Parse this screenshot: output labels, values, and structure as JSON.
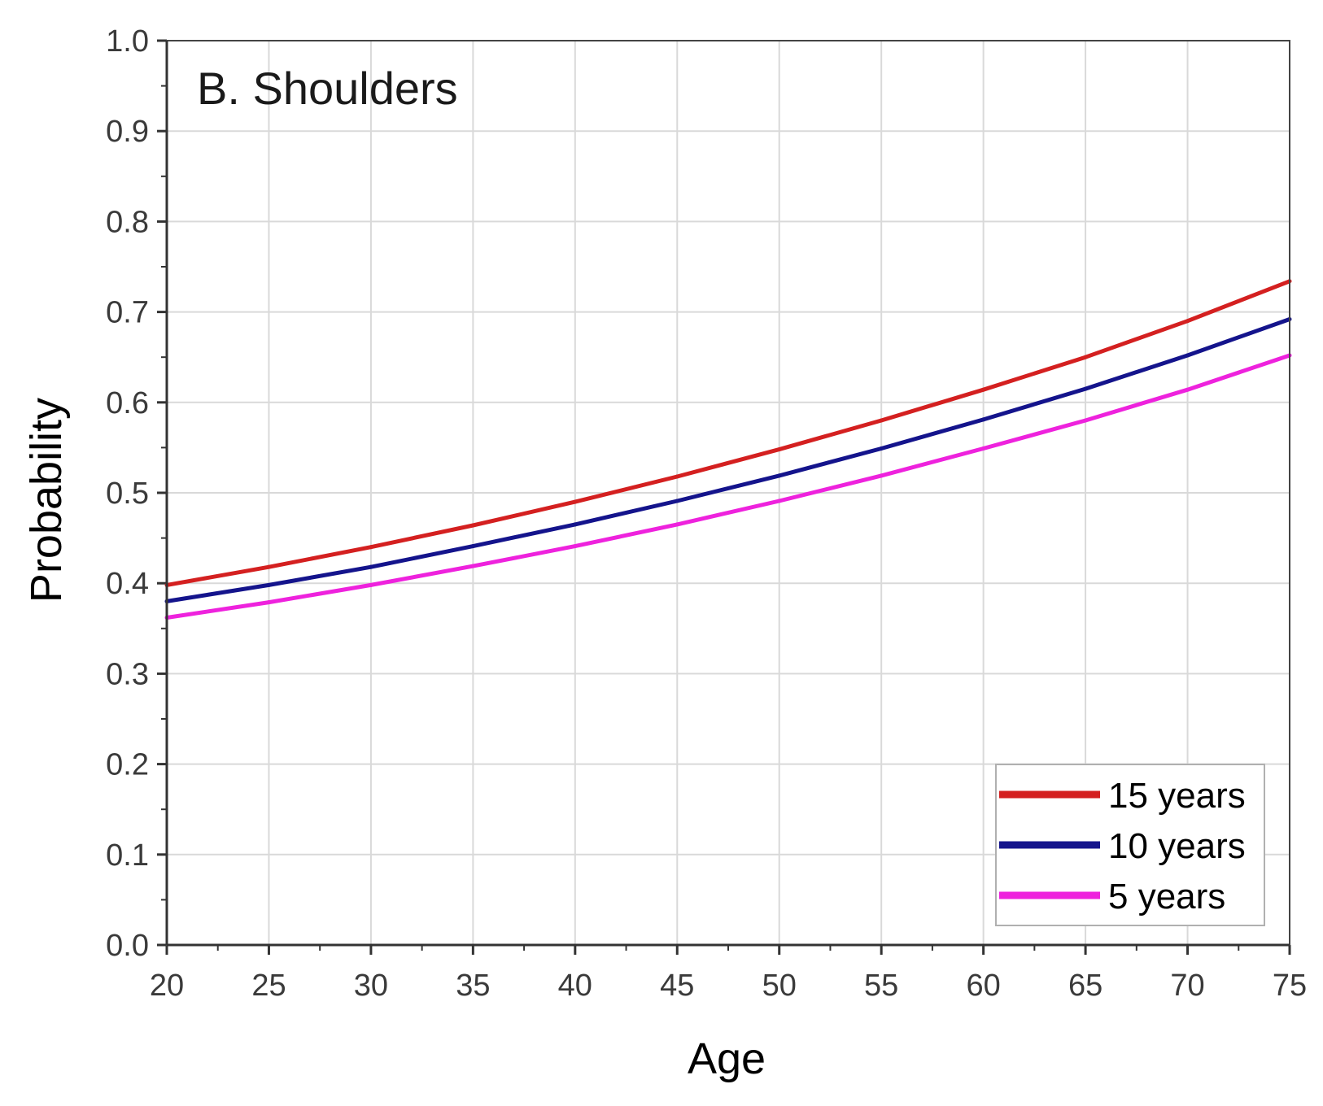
{
  "chart_data": {
    "type": "line",
    "title": "B. Shoulders",
    "xlabel": "Age",
    "ylabel": "Probability",
    "xlim": [
      20,
      75
    ],
    "ylim": [
      0.0,
      1.0
    ],
    "xticks": [
      20,
      25,
      30,
      35,
      40,
      45,
      50,
      55,
      60,
      65,
      70,
      75
    ],
    "yticks": [
      0.0,
      0.1,
      0.2,
      0.3,
      0.4,
      0.5,
      0.6,
      0.7,
      0.8,
      0.9,
      1.0
    ],
    "ytick_labels": [
      "0.0",
      "0.1",
      "0.2",
      "0.3",
      "0.4",
      "0.5",
      "0.6",
      "0.7",
      "0.8",
      "0.9",
      "1.0"
    ],
    "grid": true,
    "legend_position": "bottom-right",
    "x": [
      20,
      25,
      30,
      35,
      40,
      45,
      50,
      55,
      60,
      65,
      70,
      75
    ],
    "series": [
      {
        "name": "15 years",
        "color": "#d42020",
        "values": [
          0.398,
          0.418,
          0.44,
          0.464,
          0.49,
          0.518,
          0.548,
          0.58,
          0.614,
          0.65,
          0.69,
          0.734
        ]
      },
      {
        "name": "10 years",
        "color": "#14148c",
        "values": [
          0.38,
          0.398,
          0.418,
          0.441,
          0.465,
          0.491,
          0.519,
          0.549,
          0.581,
          0.615,
          0.652,
          0.692
        ]
      },
      {
        "name": "5 years",
        "color": "#ee22dd",
        "values": [
          0.362,
          0.379,
          0.398,
          0.419,
          0.441,
          0.465,
          0.491,
          0.519,
          0.549,
          0.58,
          0.614,
          0.652
        ]
      }
    ]
  }
}
